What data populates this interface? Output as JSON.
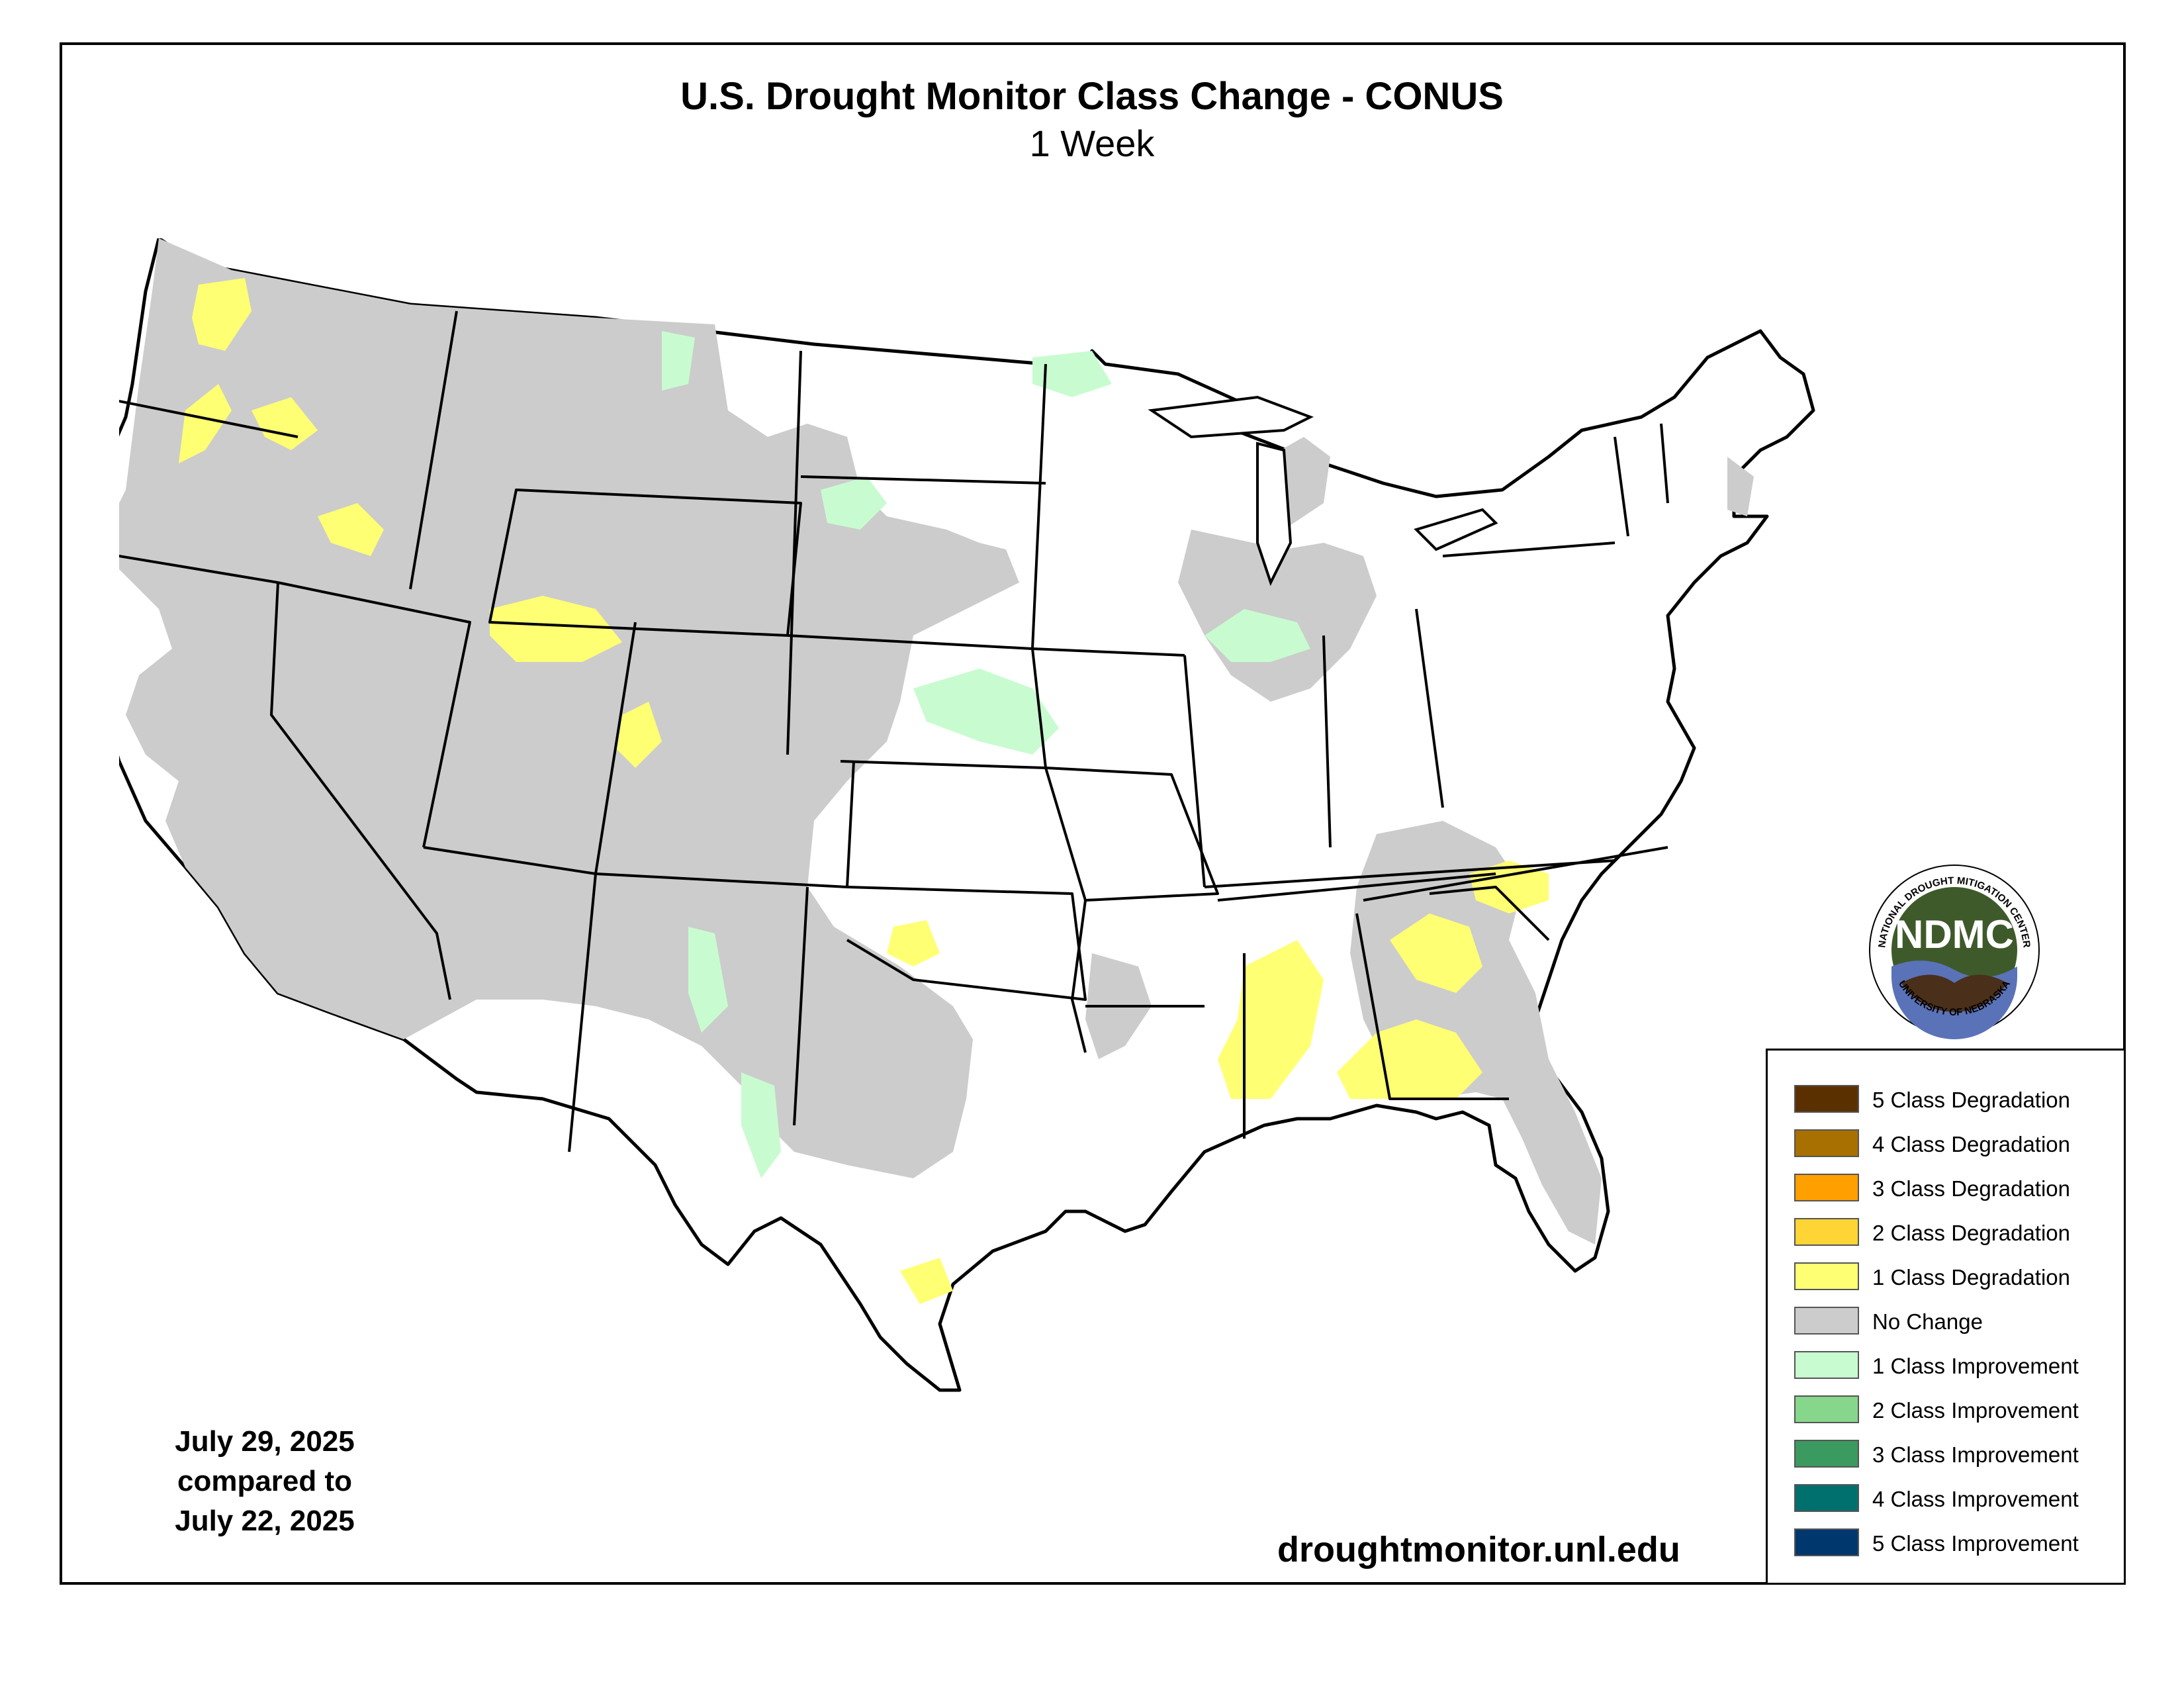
{
  "title": "U.S. Drought Monitor Class Change - CONUS",
  "subtitle": "1 Week",
  "dates": {
    "line1": "July 29, 2025",
    "line2": "compared to",
    "line3": "July 22, 2025"
  },
  "website": "droughtmonitor.unl.edu",
  "logo": {
    "acronym": "NDMC",
    "top_text": "NATIONAL DROUGHT MITIGATION CENTER",
    "bottom_text": "UNIVERSITY OF NEBRASKA"
  },
  "legend": [
    {
      "label": "5 Class Degradation",
      "color": "#5b3000"
    },
    {
      "label": "4 Class Degradation",
      "color": "#a87000"
    },
    {
      "label": "3 Class Degradation",
      "color": "#ff9f00"
    },
    {
      "label": "2 Class Degradation",
      "color": "#ffd435"
    },
    {
      "label": "1 Class Degradation",
      "color": "#ffff73"
    },
    {
      "label": "No Change",
      "color": "#cccccc"
    },
    {
      "label": "1 Class Improvement",
      "color": "#c8fcd0"
    },
    {
      "label": "2 Class Improvement",
      "color": "#86d68c"
    },
    {
      "label": "3 Class Improvement",
      "color": "#3a9a60"
    },
    {
      "label": "4 Class Improvement",
      "color": "#00706e"
    },
    {
      "label": "5 Class Improvement",
      "color": "#00386e"
    }
  ],
  "colors": {
    "no_change": "#cccccc",
    "degradation_1": "#ffff73",
    "improvement_1": "#c8fcd0",
    "border": "#000000",
    "logo_green": "#3e5a2a",
    "logo_brown": "#4a2f1a",
    "logo_blue": "#5a72b8"
  }
}
